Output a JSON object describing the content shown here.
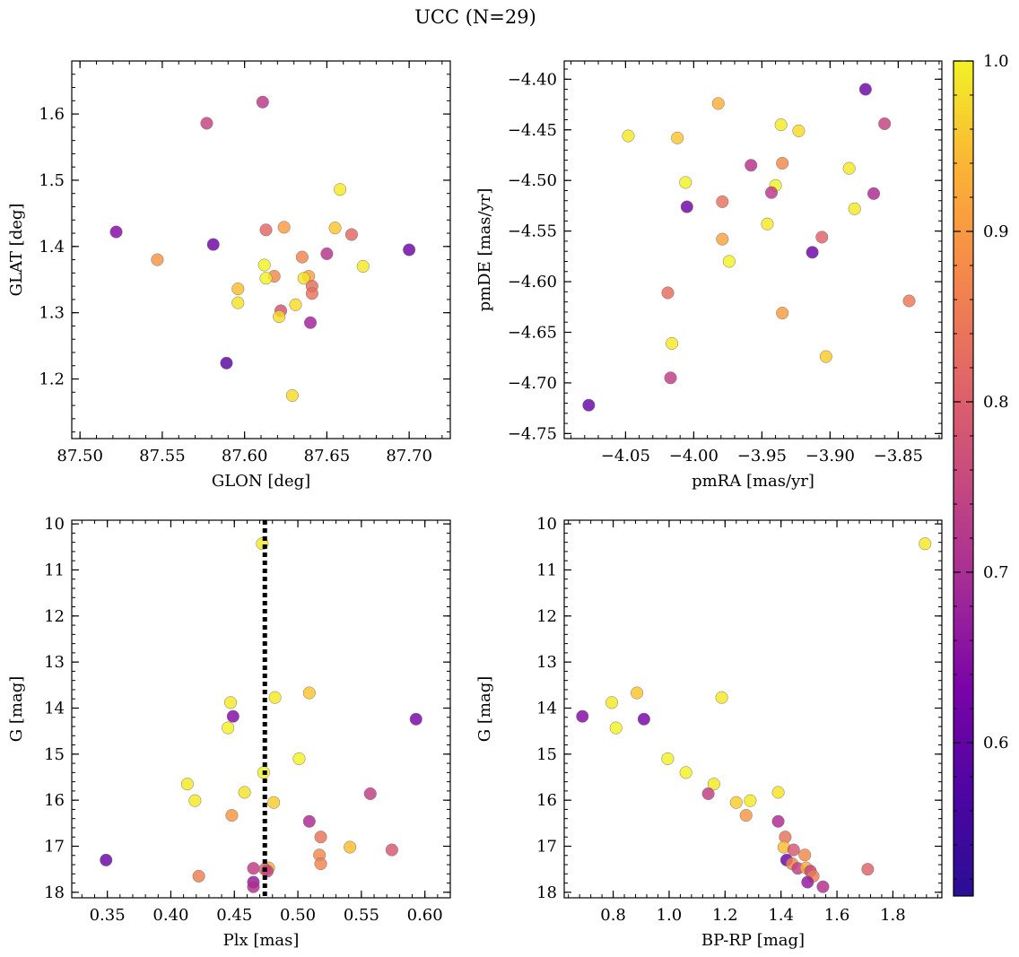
{
  "figure": {
    "title": "UCC (N=29)"
  },
  "colorbar": {
    "label": "",
    "cmap": "plasma",
    "range": [
      0.51,
      1.0
    ],
    "ticks": [
      0.6,
      0.7,
      0.8,
      0.9,
      1.0
    ],
    "tick_labels": [
      "0.6",
      "0.7",
      "0.8",
      "0.9",
      "1.0"
    ]
  },
  "chart_data": [
    {
      "type": "scatter",
      "title": "",
      "xlabel": "GLON [deg]",
      "ylabel": "GLAT [deg]",
      "xlim": [
        87.495,
        87.725
      ],
      "ylim": [
        1.11,
        1.68
      ],
      "xticks": [
        87.5,
        87.55,
        87.6,
        87.65,
        87.7
      ],
      "xtick_labels": [
        "87.50",
        "87.55",
        "87.60",
        "87.65",
        "87.70"
      ],
      "yticks": [
        1.2,
        1.3,
        1.4,
        1.5,
        1.6
      ],
      "ytick_labels": [
        "1.2",
        "1.3",
        "1.4",
        "1.5",
        "1.6"
      ],
      "grid": false,
      "points": [
        {
          "x": 87.611,
          "y": 1.618,
          "c": 0.69
        },
        {
          "x": 87.577,
          "y": 1.586,
          "c": 0.71
        },
        {
          "x": 87.522,
          "y": 1.422,
          "c": 0.59
        },
        {
          "x": 87.581,
          "y": 1.403,
          "c": 0.56
        },
        {
          "x": 87.7,
          "y": 1.395,
          "c": 0.56
        },
        {
          "x": 87.547,
          "y": 1.38,
          "c": 0.86
        },
        {
          "x": 87.589,
          "y": 1.224,
          "c": 0.53
        },
        {
          "x": 87.658,
          "y": 1.486,
          "c": 0.98
        },
        {
          "x": 87.655,
          "y": 1.428,
          "c": 0.93
        },
        {
          "x": 87.665,
          "y": 1.418,
          "c": 0.78
        },
        {
          "x": 87.624,
          "y": 1.429,
          "c": 0.87
        },
        {
          "x": 87.613,
          "y": 1.425,
          "c": 0.78
        },
        {
          "x": 87.65,
          "y": 1.389,
          "c": 0.68
        },
        {
          "x": 87.672,
          "y": 1.37,
          "c": 0.98
        },
        {
          "x": 87.612,
          "y": 1.372,
          "c": 0.99
        },
        {
          "x": 87.618,
          "y": 1.355,
          "c": 0.84
        },
        {
          "x": 87.613,
          "y": 1.352,
          "c": 0.99
        },
        {
          "x": 87.635,
          "y": 1.384,
          "c": 0.83
        },
        {
          "x": 87.639,
          "y": 1.355,
          "c": 0.88
        },
        {
          "x": 87.636,
          "y": 1.352,
          "c": 0.97
        },
        {
          "x": 87.641,
          "y": 1.34,
          "c": 0.79
        },
        {
          "x": 87.641,
          "y": 1.329,
          "c": 0.8
        },
        {
          "x": 87.596,
          "y": 1.336,
          "c": 0.92
        },
        {
          "x": 87.596,
          "y": 1.315,
          "c": 0.97
        },
        {
          "x": 87.631,
          "y": 1.312,
          "c": 0.96
        },
        {
          "x": 87.622,
          "y": 1.303,
          "c": 0.74
        },
        {
          "x": 87.621,
          "y": 1.294,
          "c": 0.96
        },
        {
          "x": 87.64,
          "y": 1.285,
          "c": 0.64
        },
        {
          "x": 87.629,
          "y": 1.175,
          "c": 0.96
        }
      ]
    },
    {
      "type": "scatter",
      "title": "",
      "xlabel": "pmRA [mas/yr]",
      "ylabel": "pmDE [mas/yr]",
      "xlim": [
        -4.095,
        -3.818
      ],
      "ylim": [
        -4.755,
        -4.382
      ],
      "xticks": [
        -4.05,
        -4.0,
        -3.95,
        -3.9,
        -3.85
      ],
      "xtick_labels": [
        "−4.05",
        "−4.00",
        "−3.95",
        "−3.90",
        "−3.85"
      ],
      "yticks": [
        -4.75,
        -4.7,
        -4.65,
        -4.6,
        -4.55,
        -4.5,
        -4.45,
        -4.4
      ],
      "ytick_labels": [
        "−4.75",
        "−4.70",
        "−4.65",
        "−4.60",
        "−4.55",
        "−4.50",
        "−4.45",
        "−4.40"
      ],
      "grid": false,
      "points": [
        {
          "x": -3.874,
          "y": -4.41,
          "c": 0.56
        },
        {
          "x": -3.982,
          "y": -4.424,
          "c": 0.9
        },
        {
          "x": -3.936,
          "y": -4.445,
          "c": 0.98
        },
        {
          "x": -3.923,
          "y": -4.451,
          "c": 0.96
        },
        {
          "x": -3.86,
          "y": -4.444,
          "c": 0.71
        },
        {
          "x": -4.048,
          "y": -4.456,
          "c": 0.98
        },
        {
          "x": -4.012,
          "y": -4.458,
          "c": 0.93
        },
        {
          "x": -3.958,
          "y": -4.485,
          "c": 0.68
        },
        {
          "x": -3.935,
          "y": -4.483,
          "c": 0.84
        },
        {
          "x": -3.886,
          "y": -4.488,
          "c": 0.98
        },
        {
          "x": -4.006,
          "y": -4.502,
          "c": 0.99
        },
        {
          "x": -3.94,
          "y": -4.505,
          "c": 0.99
        },
        {
          "x": -3.943,
          "y": -4.512,
          "c": 0.69
        },
        {
          "x": -3.868,
          "y": -4.513,
          "c": 0.66
        },
        {
          "x": -4.005,
          "y": -4.526,
          "c": 0.56
        },
        {
          "x": -3.979,
          "y": -4.521,
          "c": 0.8
        },
        {
          "x": -3.882,
          "y": -4.528,
          "c": 0.98
        },
        {
          "x": -3.946,
          "y": -4.543,
          "c": 0.98
        },
        {
          "x": -3.906,
          "y": -4.556,
          "c": 0.77
        },
        {
          "x": -3.979,
          "y": -4.558,
          "c": 0.88
        },
        {
          "x": -3.913,
          "y": -4.571,
          "c": 0.56
        },
        {
          "x": -3.974,
          "y": -4.58,
          "c": 0.99
        },
        {
          "x": -4.019,
          "y": -4.611,
          "c": 0.79
        },
        {
          "x": -3.842,
          "y": -4.619,
          "c": 0.81
        },
        {
          "x": -3.935,
          "y": -4.631,
          "c": 0.87
        },
        {
          "x": -4.016,
          "y": -4.661,
          "c": 0.98
        },
        {
          "x": -3.903,
          "y": -4.674,
          "c": 0.94
        },
        {
          "x": -4.017,
          "y": -4.695,
          "c": 0.7
        },
        {
          "x": -4.077,
          "y": -4.722,
          "c": 0.55
        }
      ]
    },
    {
      "type": "scatter",
      "title": "",
      "xlabel": "Plx [mas]",
      "ylabel": "G [mag]",
      "xlim": [
        0.322,
        0.62
      ],
      "ylim": [
        18.12,
        9.92
      ],
      "xticks": [
        0.35,
        0.4,
        0.45,
        0.5,
        0.55,
        0.6
      ],
      "xtick_labels": [
        "0.35",
        "0.40",
        "0.45",
        "0.50",
        "0.55",
        "0.60"
      ],
      "yticks": [
        10,
        11,
        12,
        13,
        14,
        15,
        16,
        17,
        18
      ],
      "ytick_labels": [
        "10",
        "11",
        "12",
        "13",
        "14",
        "15",
        "16",
        "17",
        "18"
      ],
      "grid": false,
      "vline": {
        "x": 0.474,
        "style": "dotted",
        "color": "#000000"
      },
      "points": [
        {
          "x": 0.472,
          "y": 10.43,
          "c": 0.98
        },
        {
          "x": 0.509,
          "y": 13.67,
          "c": 0.93
        },
        {
          "x": 0.482,
          "y": 13.77,
          "c": 0.98
        },
        {
          "x": 0.447,
          "y": 13.88,
          "c": 0.98
        },
        {
          "x": 0.449,
          "y": 14.18,
          "c": 0.59
        },
        {
          "x": 0.593,
          "y": 14.24,
          "c": 0.57
        },
        {
          "x": 0.445,
          "y": 14.43,
          "c": 0.99
        },
        {
          "x": 0.501,
          "y": 15.1,
          "c": 0.99
        },
        {
          "x": 0.473,
          "y": 15.4,
          "c": 0.99
        },
        {
          "x": 0.413,
          "y": 15.65,
          "c": 0.98
        },
        {
          "x": 0.458,
          "y": 15.83,
          "c": 0.97
        },
        {
          "x": 0.557,
          "y": 15.86,
          "c": 0.7
        },
        {
          "x": 0.419,
          "y": 16.01,
          "c": 0.98
        },
        {
          "x": 0.481,
          "y": 16.05,
          "c": 0.94
        },
        {
          "x": 0.448,
          "y": 16.33,
          "c": 0.86
        },
        {
          "x": 0.509,
          "y": 16.46,
          "c": 0.66
        },
        {
          "x": 0.518,
          "y": 16.8,
          "c": 0.8
        },
        {
          "x": 0.541,
          "y": 17.02,
          "c": 0.92
        },
        {
          "x": 0.574,
          "y": 17.08,
          "c": 0.75
        },
        {
          "x": 0.517,
          "y": 17.19,
          "c": 0.84
        },
        {
          "x": 0.349,
          "y": 17.3,
          "c": 0.55
        },
        {
          "x": 0.518,
          "y": 17.38,
          "c": 0.83
        },
        {
          "x": 0.465,
          "y": 17.48,
          "c": 0.7
        },
        {
          "x": 0.477,
          "y": 17.47,
          "c": 0.9
        },
        {
          "x": 0.474,
          "y": 17.5,
          "c": 0.77
        },
        {
          "x": 0.476,
          "y": 17.54,
          "c": 0.71
        },
        {
          "x": 0.422,
          "y": 17.65,
          "c": 0.82
        },
        {
          "x": 0.465,
          "y": 17.78,
          "c": 0.62
        },
        {
          "x": 0.465,
          "y": 17.88,
          "c": 0.67
        }
      ]
    },
    {
      "type": "scatter",
      "title": "",
      "xlabel": "BP-RP [mag]",
      "ylabel": "G [mag]",
      "xlim": [
        0.625,
        1.975
      ],
      "ylim": [
        18.12,
        9.92
      ],
      "xticks": [
        0.8,
        1.0,
        1.2,
        1.4,
        1.6,
        1.8
      ],
      "xtick_labels": [
        "0.8",
        "1.0",
        "1.2",
        "1.4",
        "1.6",
        "1.8"
      ],
      "yticks": [
        10,
        11,
        12,
        13,
        14,
        15,
        16,
        17,
        18
      ],
      "ytick_labels": [
        "10",
        "11",
        "12",
        "13",
        "14",
        "15",
        "16",
        "17",
        "18"
      ],
      "grid": false,
      "points": [
        {
          "x": 1.915,
          "y": 10.43,
          "c": 0.98
        },
        {
          "x": 0.885,
          "y": 13.67,
          "c": 0.93
        },
        {
          "x": 1.188,
          "y": 13.77,
          "c": 0.98
        },
        {
          "x": 0.795,
          "y": 13.88,
          "c": 0.98
        },
        {
          "x": 0.69,
          "y": 14.18,
          "c": 0.59
        },
        {
          "x": 0.91,
          "y": 14.24,
          "c": 0.57
        },
        {
          "x": 0.81,
          "y": 14.43,
          "c": 0.99
        },
        {
          "x": 0.995,
          "y": 15.1,
          "c": 0.99
        },
        {
          "x": 1.06,
          "y": 15.4,
          "c": 0.99
        },
        {
          "x": 1.16,
          "y": 15.65,
          "c": 0.98
        },
        {
          "x": 1.39,
          "y": 15.83,
          "c": 0.97
        },
        {
          "x": 1.14,
          "y": 15.86,
          "c": 0.7
        },
        {
          "x": 1.29,
          "y": 16.01,
          "c": 0.98
        },
        {
          "x": 1.24,
          "y": 16.05,
          "c": 0.94
        },
        {
          "x": 1.275,
          "y": 16.33,
          "c": 0.86
        },
        {
          "x": 1.39,
          "y": 16.46,
          "c": 0.66
        },
        {
          "x": 1.415,
          "y": 16.8,
          "c": 0.8
        },
        {
          "x": 1.41,
          "y": 17.02,
          "c": 0.92
        },
        {
          "x": 1.445,
          "y": 17.08,
          "c": 0.75
        },
        {
          "x": 1.485,
          "y": 17.19,
          "c": 0.84
        },
        {
          "x": 1.42,
          "y": 17.3,
          "c": 0.55
        },
        {
          "x": 1.44,
          "y": 17.38,
          "c": 0.83
        },
        {
          "x": 1.46,
          "y": 17.48,
          "c": 0.7
        },
        {
          "x": 1.49,
          "y": 17.47,
          "c": 0.9
        },
        {
          "x": 1.71,
          "y": 17.5,
          "c": 0.77
        },
        {
          "x": 1.505,
          "y": 17.54,
          "c": 0.71
        },
        {
          "x": 1.515,
          "y": 17.65,
          "c": 0.82
        },
        {
          "x": 1.495,
          "y": 17.78,
          "c": 0.62
        },
        {
          "x": 1.55,
          "y": 17.88,
          "c": 0.67
        }
      ]
    }
  ]
}
